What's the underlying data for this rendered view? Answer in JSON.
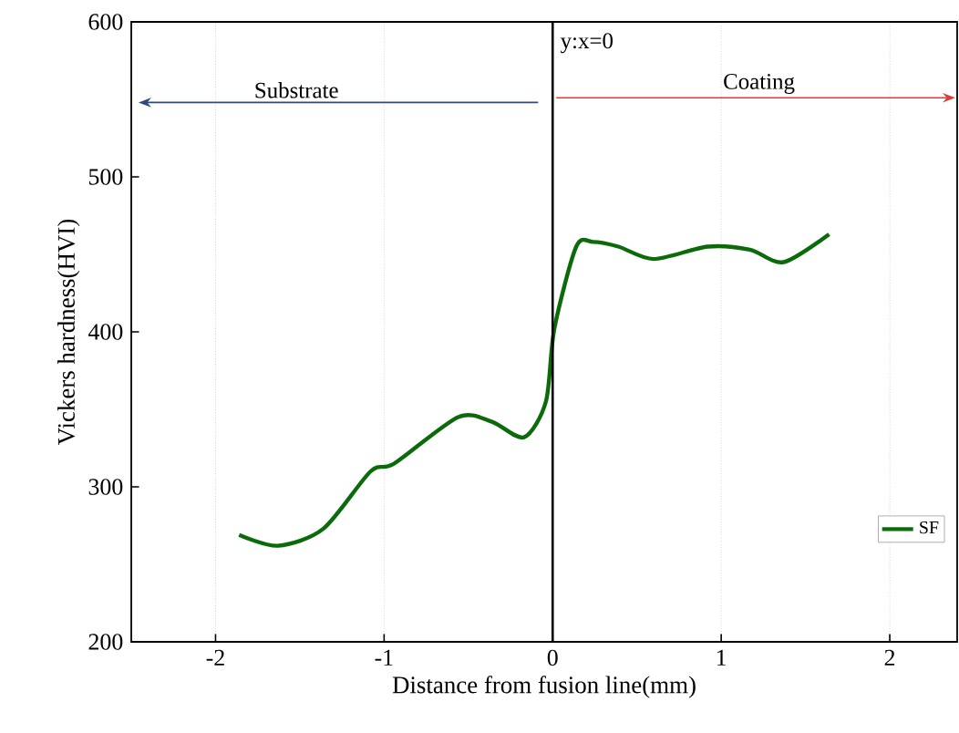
{
  "chart_data": {
    "type": "line",
    "xlabel": "Distance from fusion line(mm)",
    "ylabel": "Vickers hardness(HVI)",
    "xlim": [
      -2.5,
      2.4
    ],
    "ylim": [
      200,
      600
    ],
    "xticks": [
      -2,
      -1,
      0,
      1,
      2
    ],
    "yticks": [
      200,
      300,
      400,
      500,
      600
    ],
    "grid": "x",
    "legend": "bottom right",
    "marker": "none",
    "line_style": "solid",
    "series": [
      {
        "name": "SF",
        "color": "#0b6b0b",
        "x": [
          -1.86,
          -1.63,
          -1.36,
          -1.08,
          -0.94,
          -0.56,
          -0.36,
          -0.17,
          -0.04,
          0.01,
          0.14,
          0.24,
          0.39,
          0.6,
          0.92,
          1.17,
          1.37,
          1.64
        ],
        "values": [
          269,
          262,
          273,
          310,
          315,
          345,
          342,
          332,
          355,
          402,
          455,
          458,
          455,
          447,
          455,
          453,
          445,
          463
        ]
      }
    ],
    "ref_lines": [
      {
        "axis": "x",
        "value": 0,
        "label": "y:x=0",
        "color": "#000000"
      }
    ],
    "annotations": [
      "Substrate",
      "Coating"
    ]
  }
}
